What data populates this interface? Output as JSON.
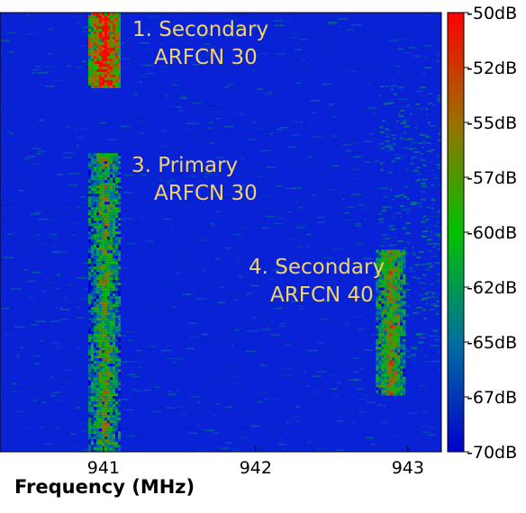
{
  "chart_data": {
    "type": "heatmap",
    "xlabel": "Frequency (MHz)",
    "x_ticks": [
      941,
      942,
      943
    ],
    "xlim": [
      940.32,
      943.22
    ],
    "colorbar": {
      "labels": [
        "-50dB",
        "-52dB",
        "-55dB",
        "-57dB",
        "-60dB",
        "-62dB",
        "-65dB",
        "-67dB",
        "-70dB"
      ],
      "range_db": [
        -70,
        -50
      ],
      "colors": [
        "#0000cc",
        "#00c000",
        "#ff0000"
      ]
    },
    "signals": [
      {
        "label": "1. Secondary",
        "label2": "ARFCN 30",
        "center_mhz": 941.0,
        "width_mhz": 0.2,
        "time_range": [
          0.0,
          0.17
        ],
        "level_db": -52
      },
      {
        "label": "3. Primary",
        "label2": "ARFCN 30",
        "center_mhz": 941.0,
        "width_mhz": 0.2,
        "time_range": [
          0.32,
          1.0
        ],
        "level_db": -58
      },
      {
        "label": "4. Secondary",
        "label2": "ARFCN 40",
        "center_mhz": 942.88,
        "width_mhz": 0.18,
        "time_range": [
          0.54,
          0.87
        ],
        "level_db": -56
      }
    ],
    "background_db": -69,
    "grid": false,
    "legend": "colorbar-right"
  }
}
